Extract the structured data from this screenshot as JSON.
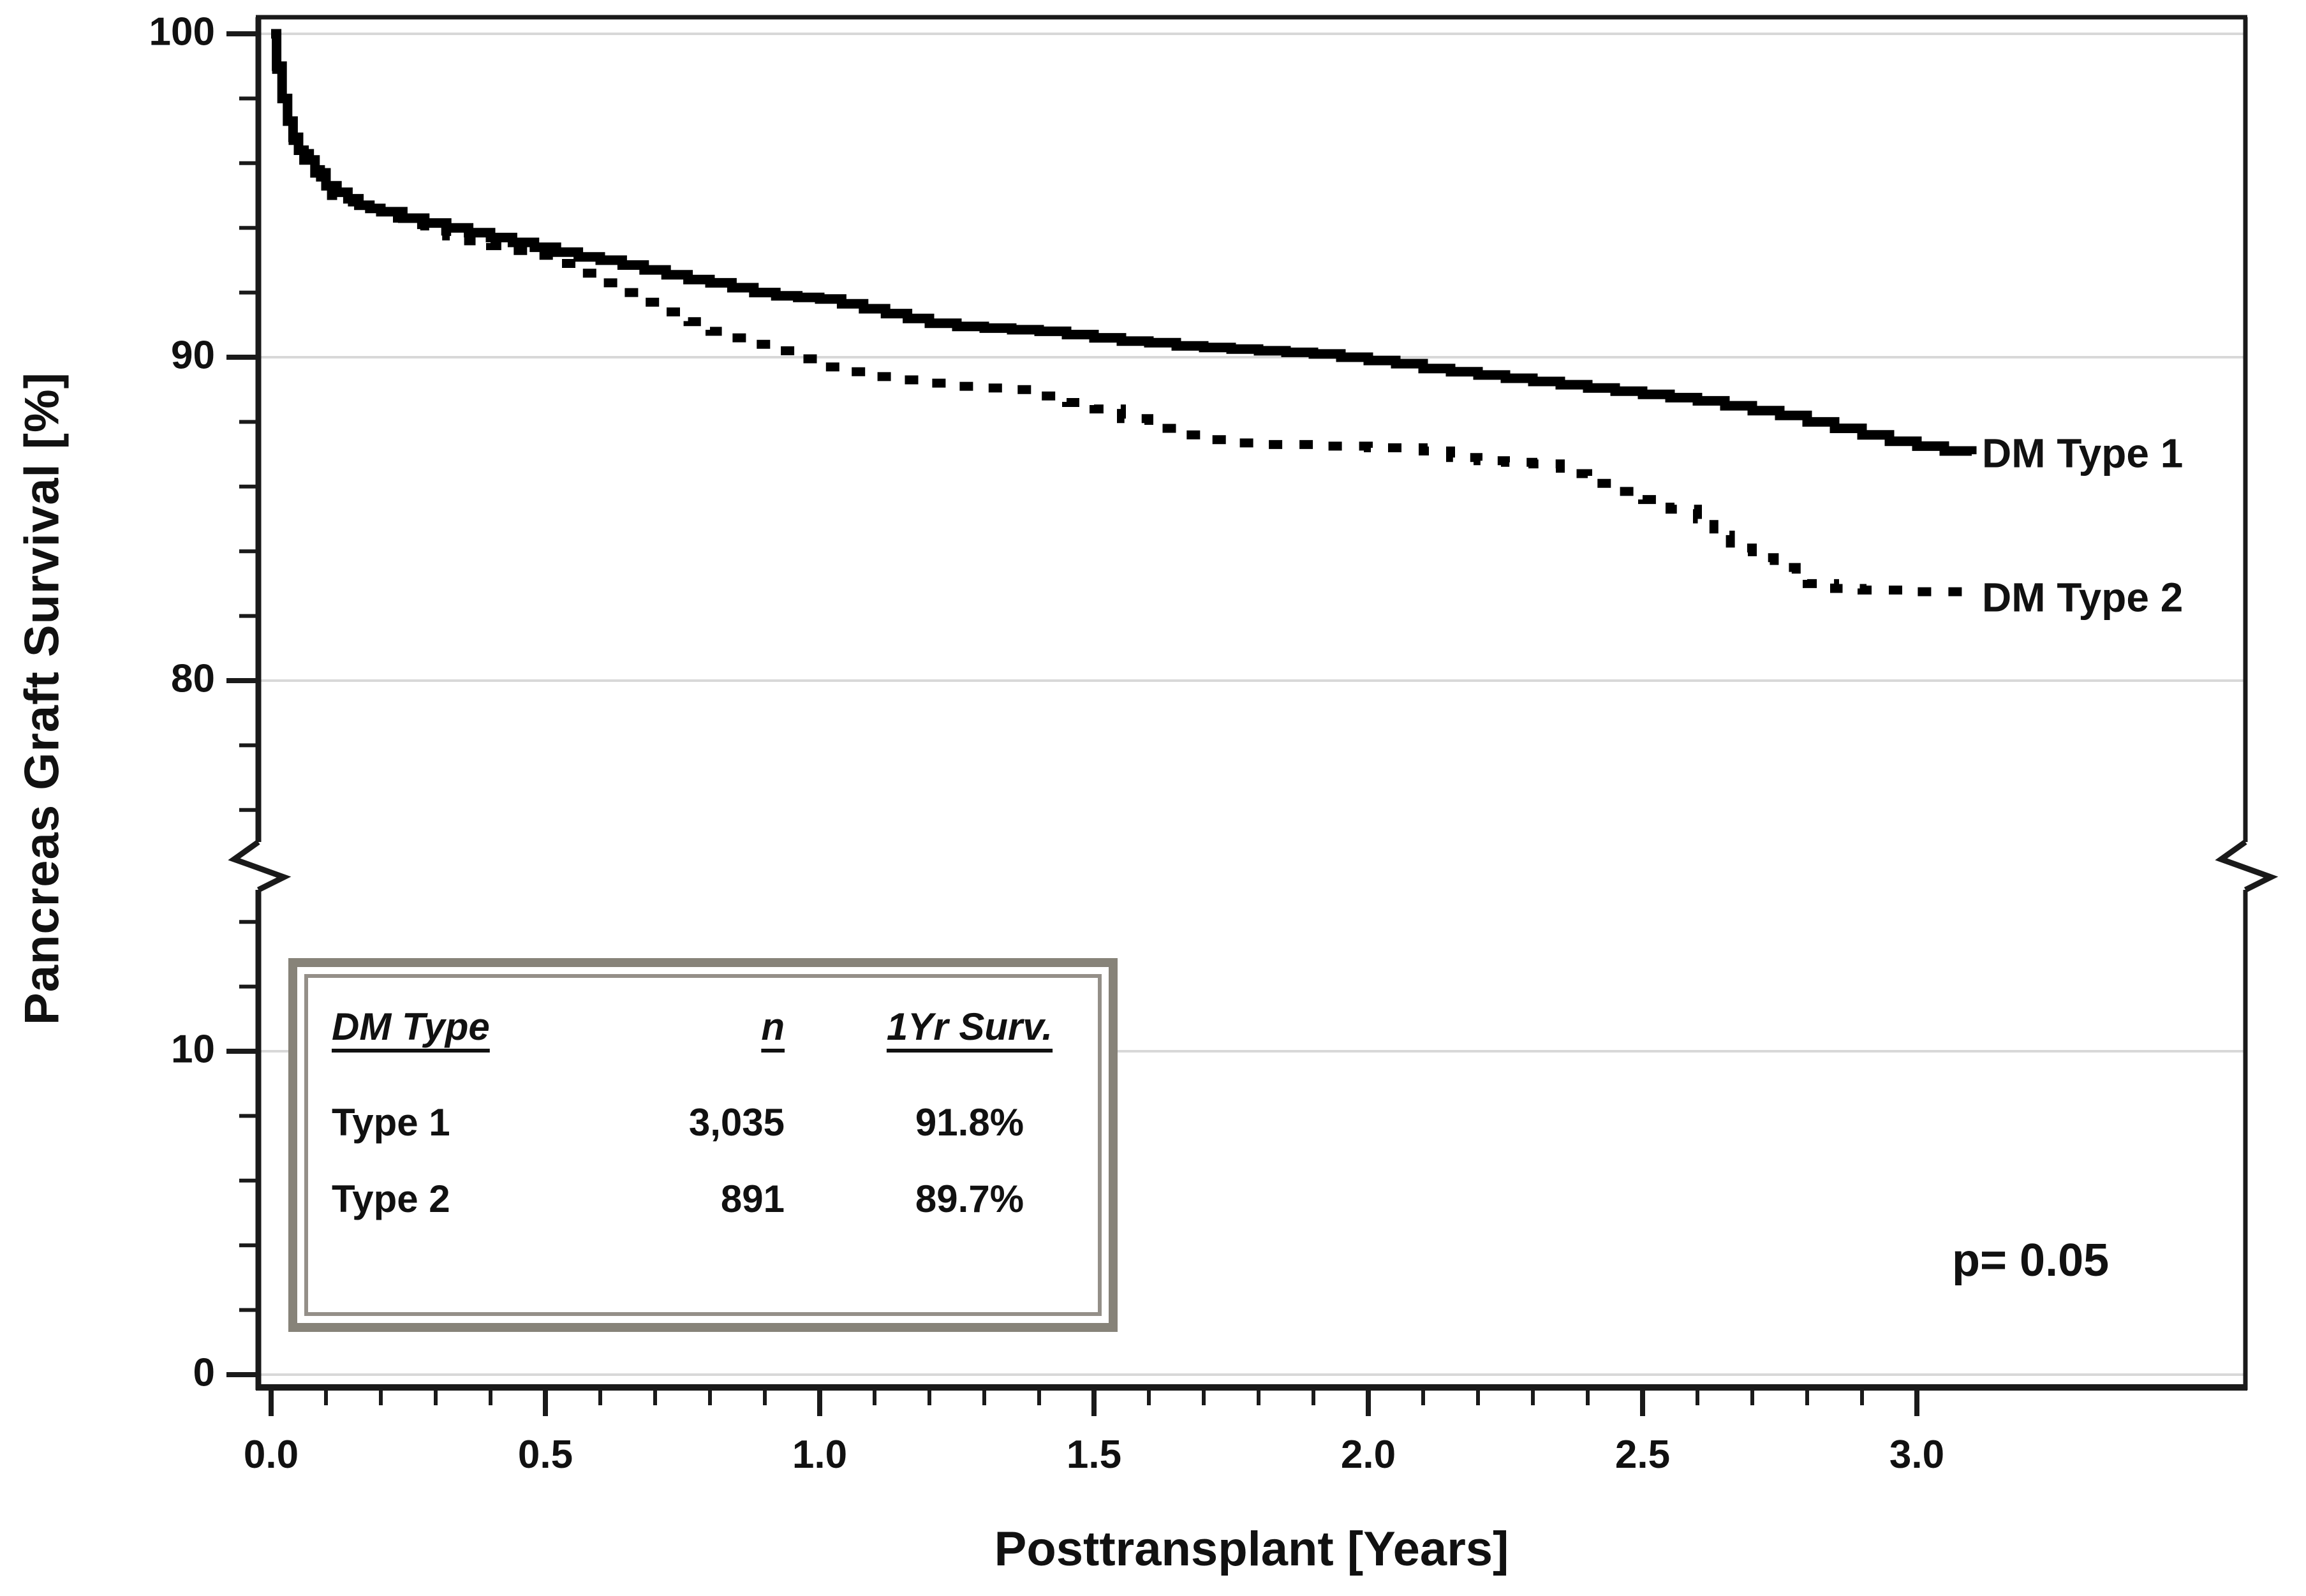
{
  "chart_data": {
    "type": "line",
    "subtype": "kaplan-meier-step",
    "title": "",
    "xlabel": "Posttransplant [Years]",
    "ylabel": "Pancreas Graft Survival [%]",
    "x_tick_labels": [
      "0.0",
      "0.5",
      "1.0",
      "1.5",
      "2.0",
      "2.5",
      "3.0"
    ],
    "x_ticks_major": [
      0.0,
      0.5,
      1.0,
      1.5,
      2.0,
      2.5,
      3.0
    ],
    "x_minor_tick_step": 0.1,
    "x_minor_tick_range": [
      0.1,
      2.9
    ],
    "xlim": [
      0,
      3.6
    ],
    "y_tick_labels": [
      "100",
      "90",
      "80",
      "10",
      "0"
    ],
    "y_ticks_major": [
      100,
      90,
      80,
      10,
      0
    ],
    "y_minor_ticks_upper": [
      98,
      96,
      94,
      92,
      88,
      86,
      84,
      82,
      78,
      76
    ],
    "y_minor_ticks_lower": [
      14,
      12,
      8,
      6,
      4,
      2
    ],
    "axis_break": {
      "upper_segment": [
        75,
        100
      ],
      "lower_segment": [
        0,
        15
      ]
    },
    "grid": true,
    "legend_position": "right-of-curve-ends",
    "series": [
      {
        "name": "DM Type 1",
        "style": "solid",
        "n": "3,035",
        "one_year_survival": "91.8%",
        "points": [
          [
            0,
            100
          ],
          [
            0.01,
            99.0
          ],
          [
            0.02,
            98.0
          ],
          [
            0.03,
            97.3
          ],
          [
            0.04,
            96.8
          ],
          [
            0.05,
            96.4
          ],
          [
            0.06,
            96.1
          ],
          [
            0.08,
            95.7
          ],
          [
            0.1,
            95.3
          ],
          [
            0.12,
            95.1
          ],
          [
            0.14,
            94.9
          ],
          [
            0.16,
            94.7
          ],
          [
            0.18,
            94.6
          ],
          [
            0.2,
            94.5
          ],
          [
            0.24,
            94.3
          ],
          [
            0.28,
            94.15
          ],
          [
            0.32,
            94.0
          ],
          [
            0.36,
            93.85
          ],
          [
            0.4,
            93.7
          ],
          [
            0.44,
            93.55
          ],
          [
            0.48,
            93.4
          ],
          [
            0.52,
            93.25
          ],
          [
            0.56,
            93.1
          ],
          [
            0.6,
            93.0
          ],
          [
            0.64,
            92.85
          ],
          [
            0.68,
            92.7
          ],
          [
            0.72,
            92.55
          ],
          [
            0.76,
            92.4
          ],
          [
            0.8,
            92.3
          ],
          [
            0.84,
            92.15
          ],
          [
            0.88,
            92.0
          ],
          [
            0.92,
            91.9
          ],
          [
            0.96,
            91.85
          ],
          [
            1.0,
            91.8
          ],
          [
            1.04,
            91.65
          ],
          [
            1.08,
            91.5
          ],
          [
            1.12,
            91.35
          ],
          [
            1.16,
            91.2
          ],
          [
            1.2,
            91.05
          ],
          [
            1.25,
            90.95
          ],
          [
            1.3,
            90.9
          ],
          [
            1.35,
            90.85
          ],
          [
            1.4,
            90.8
          ],
          [
            1.45,
            90.7
          ],
          [
            1.5,
            90.6
          ],
          [
            1.55,
            90.5
          ],
          [
            1.6,
            90.45
          ],
          [
            1.65,
            90.35
          ],
          [
            1.7,
            90.3
          ],
          [
            1.75,
            90.25
          ],
          [
            1.8,
            90.2
          ],
          [
            1.85,
            90.15
          ],
          [
            1.9,
            90.1
          ],
          [
            1.95,
            90.0
          ],
          [
            2.0,
            89.9
          ],
          [
            2.05,
            89.8
          ],
          [
            2.1,
            89.65
          ],
          [
            2.15,
            89.55
          ],
          [
            2.2,
            89.45
          ],
          [
            2.25,
            89.35
          ],
          [
            2.3,
            89.25
          ],
          [
            2.35,
            89.15
          ],
          [
            2.4,
            89.05
          ],
          [
            2.45,
            88.95
          ],
          [
            2.5,
            88.85
          ],
          [
            2.55,
            88.75
          ],
          [
            2.6,
            88.65
          ],
          [
            2.65,
            88.5
          ],
          [
            2.7,
            88.35
          ],
          [
            2.75,
            88.2
          ],
          [
            2.8,
            88.0
          ],
          [
            2.85,
            87.8
          ],
          [
            2.9,
            87.6
          ],
          [
            2.95,
            87.4
          ],
          [
            3.0,
            87.25
          ],
          [
            3.05,
            87.1
          ],
          [
            3.1,
            87.0
          ]
        ]
      },
      {
        "name": "DM Type 2",
        "style": "dashed",
        "n": "891",
        "one_year_survival": "89.7%",
        "points": [
          [
            0,
            100
          ],
          [
            0.01,
            98.9
          ],
          [
            0.02,
            97.9
          ],
          [
            0.03,
            97.2
          ],
          [
            0.04,
            96.7
          ],
          [
            0.05,
            96.3
          ],
          [
            0.07,
            95.8
          ],
          [
            0.09,
            95.4
          ],
          [
            0.11,
            95.0
          ],
          [
            0.13,
            94.8
          ],
          [
            0.16,
            94.6
          ],
          [
            0.2,
            94.3
          ],
          [
            0.24,
            94.1
          ],
          [
            0.28,
            93.9
          ],
          [
            0.32,
            93.75
          ],
          [
            0.36,
            93.6
          ],
          [
            0.4,
            93.45
          ],
          [
            0.44,
            93.3
          ],
          [
            0.48,
            93.15
          ],
          [
            0.52,
            92.9
          ],
          [
            0.56,
            92.6
          ],
          [
            0.6,
            92.3
          ],
          [
            0.64,
            92.0
          ],
          [
            0.68,
            91.7
          ],
          [
            0.72,
            91.4
          ],
          [
            0.76,
            91.1
          ],
          [
            0.8,
            90.8
          ],
          [
            0.84,
            90.6
          ],
          [
            0.88,
            90.4
          ],
          [
            0.92,
            90.2
          ],
          [
            0.96,
            89.95
          ],
          [
            1.0,
            89.7
          ],
          [
            1.05,
            89.55
          ],
          [
            1.1,
            89.4
          ],
          [
            1.15,
            89.3
          ],
          [
            1.2,
            89.2
          ],
          [
            1.25,
            89.1
          ],
          [
            1.3,
            89.05
          ],
          [
            1.35,
            89.0
          ],
          [
            1.4,
            88.8
          ],
          [
            1.45,
            88.6
          ],
          [
            1.5,
            88.4
          ],
          [
            1.55,
            88.1
          ],
          [
            1.6,
            87.8
          ],
          [
            1.65,
            87.6
          ],
          [
            1.7,
            87.45
          ],
          [
            1.75,
            87.35
          ],
          [
            1.8,
            87.3
          ],
          [
            1.9,
            87.25
          ],
          [
            2.0,
            87.2
          ],
          [
            2.1,
            87.1
          ],
          [
            2.15,
            86.9
          ],
          [
            2.2,
            86.8
          ],
          [
            2.25,
            86.75
          ],
          [
            2.3,
            86.7
          ],
          [
            2.35,
            86.4
          ],
          [
            2.4,
            86.1
          ],
          [
            2.45,
            85.85
          ],
          [
            2.5,
            85.6
          ],
          [
            2.55,
            85.3
          ],
          [
            2.6,
            85.0
          ],
          [
            2.63,
            84.5
          ],
          [
            2.66,
            84.1
          ],
          [
            2.7,
            83.8
          ],
          [
            2.74,
            83.5
          ],
          [
            2.78,
            83.2
          ],
          [
            2.8,
            83.0
          ],
          [
            2.85,
            82.85
          ],
          [
            2.9,
            82.8
          ],
          [
            3.0,
            82.75
          ],
          [
            3.1,
            82.7
          ]
        ]
      }
    ],
    "inset_table": {
      "headers": [
        "DM Type",
        "n",
        "1Yr Surv."
      ],
      "rows": [
        [
          "Type 1",
          "3,035",
          "91.8%"
        ],
        [
          "Type 2",
          "891",
          "89.7%"
        ]
      ]
    },
    "annotations": {
      "p_label": "p= 0.05"
    },
    "colors": {
      "curve": "#000000",
      "grid": "#d8d8d8",
      "frame": "#1a1a1a",
      "table_border_outer": "#878379",
      "table_border_inner": "#948f88",
      "text": "#111111"
    }
  }
}
